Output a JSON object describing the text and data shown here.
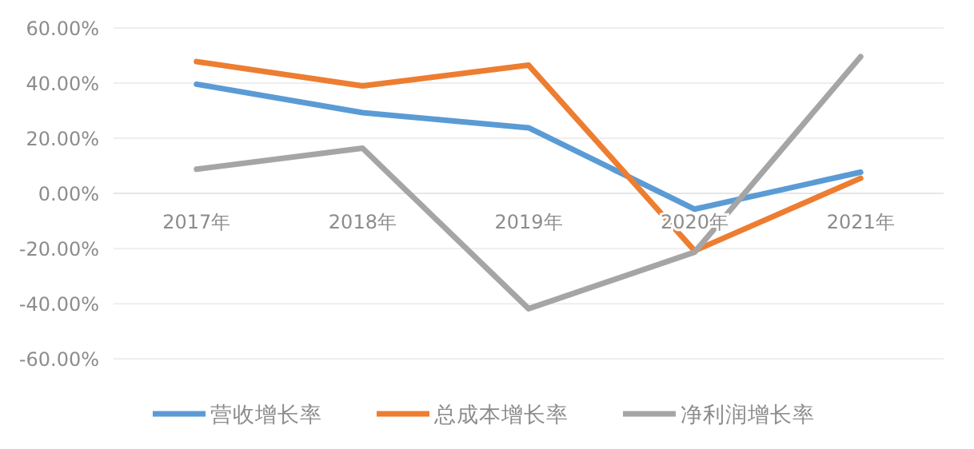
{
  "chart_data": {
    "type": "line",
    "categories": [
      "2017年",
      "2018年",
      "2019年",
      "2020年",
      "2021年"
    ],
    "series": [
      {
        "name": "营收增长率",
        "color": "#5b9bd5",
        "values": [
          39.6,
          29.3,
          23.8,
          -5.7,
          7.7
        ]
      },
      {
        "name": "总成本增长率",
        "color": "#ed7d31",
        "values": [
          47.8,
          39.0,
          46.5,
          -20.8,
          5.5
        ]
      },
      {
        "name": "净利润增长率",
        "color": "#a5a5a5",
        "values": [
          8.8,
          16.4,
          -41.8,
          -21.3,
          49.6
        ]
      }
    ],
    "ylim": [
      -60,
      60
    ],
    "yticks": [
      {
        "value": 60,
        "label": "60.00%"
      },
      {
        "value": 40,
        "label": "40.00%"
      },
      {
        "value": 20,
        "label": "20.00%"
      },
      {
        "value": 0,
        "label": "0.00%"
      },
      {
        "value": -20,
        "label": "-20.00%"
      },
      {
        "value": -40,
        "label": "-40.00%"
      },
      {
        "value": -60,
        "label": "-60.00%"
      }
    ],
    "grid": "y",
    "legend": "bottom",
    "marker": "none",
    "line_style": "solid"
  }
}
